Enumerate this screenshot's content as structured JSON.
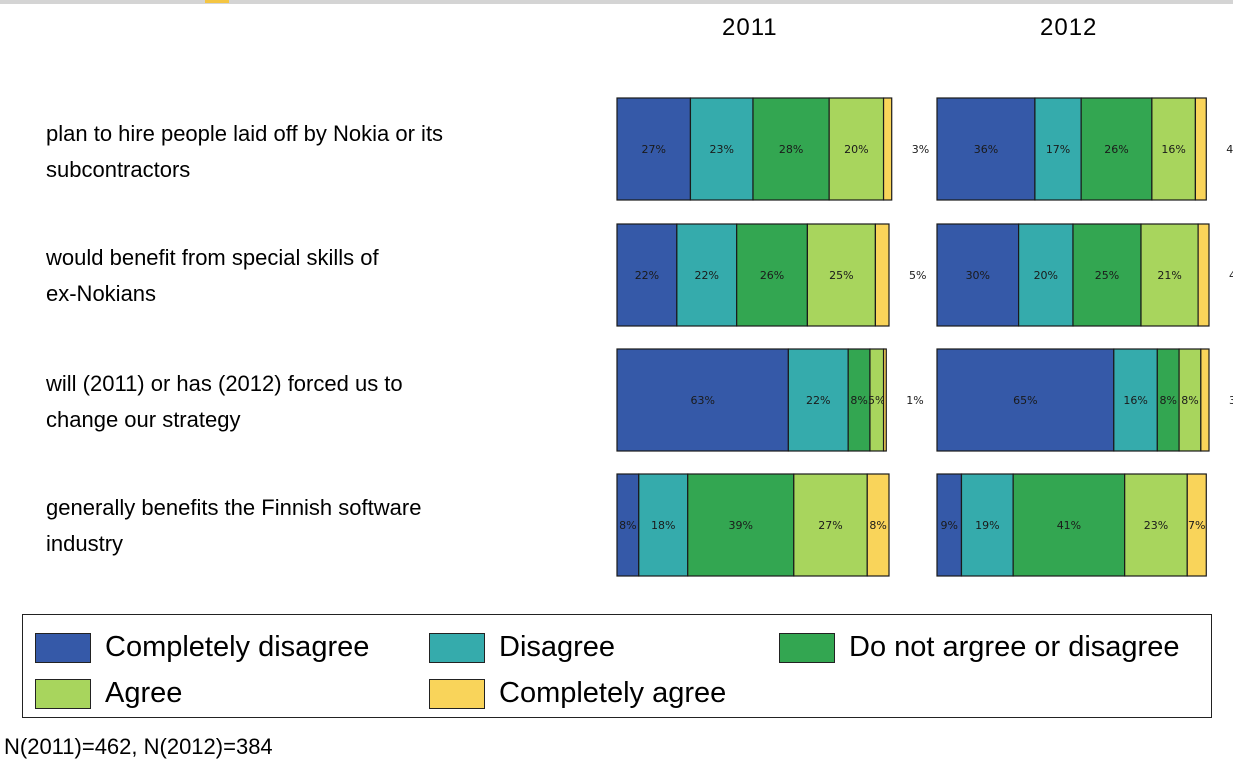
{
  "chart_data": {
    "type": "bar",
    "orientation": "horizontal",
    "stacked": true,
    "panels": [
      "2011",
      "2012"
    ],
    "categories": [
      "plan to hire people laid off by Nokia or its subcontractors",
      "would benefit from special skills of ex-Nokians",
      "will (2011) or has (2012) forced us to change our strategy",
      "generally benefits the Finnish software industry"
    ],
    "category_lines": [
      [
        "plan to hire people laid off by Nokia or its",
        "subcontractors"
      ],
      [
        "would benefit from special skills of",
        "ex-Nokians"
      ],
      [
        "will (2011) or has (2012) forced us to",
        "change our strategy"
      ],
      [
        "generally benefits the Finnish software",
        "industry"
      ]
    ],
    "series": [
      {
        "name": "Completely disagree",
        "color": "#3559a8",
        "values_2011": [
          27,
          22,
          63,
          8
        ],
        "values_2012": [
          36,
          30,
          65,
          9
        ]
      },
      {
        "name": "Disagree",
        "color": "#35abac",
        "values_2011": [
          23,
          22,
          22,
          18
        ],
        "values_2012": [
          17,
          20,
          16,
          19
        ]
      },
      {
        "name": "Do not argree or disagree",
        "color": "#33a651",
        "values_2011": [
          28,
          26,
          8,
          39
        ],
        "values_2012": [
          26,
          25,
          8,
          41
        ]
      },
      {
        "name": "Agree",
        "color": "#a8d55d",
        "values_2011": [
          20,
          25,
          5,
          27
        ],
        "values_2012": [
          16,
          21,
          8,
          23
        ]
      },
      {
        "name": "Completely agree",
        "color": "#f9d45a",
        "values_2011": [
          3,
          5,
          1,
          8
        ],
        "values_2012": [
          4,
          4,
          3,
          7
        ]
      }
    ],
    "xlim": [
      0,
      100
    ],
    "legend_position": "bottom",
    "grid": false
  },
  "footnote": "N(2011)=462, N(2012)=384"
}
